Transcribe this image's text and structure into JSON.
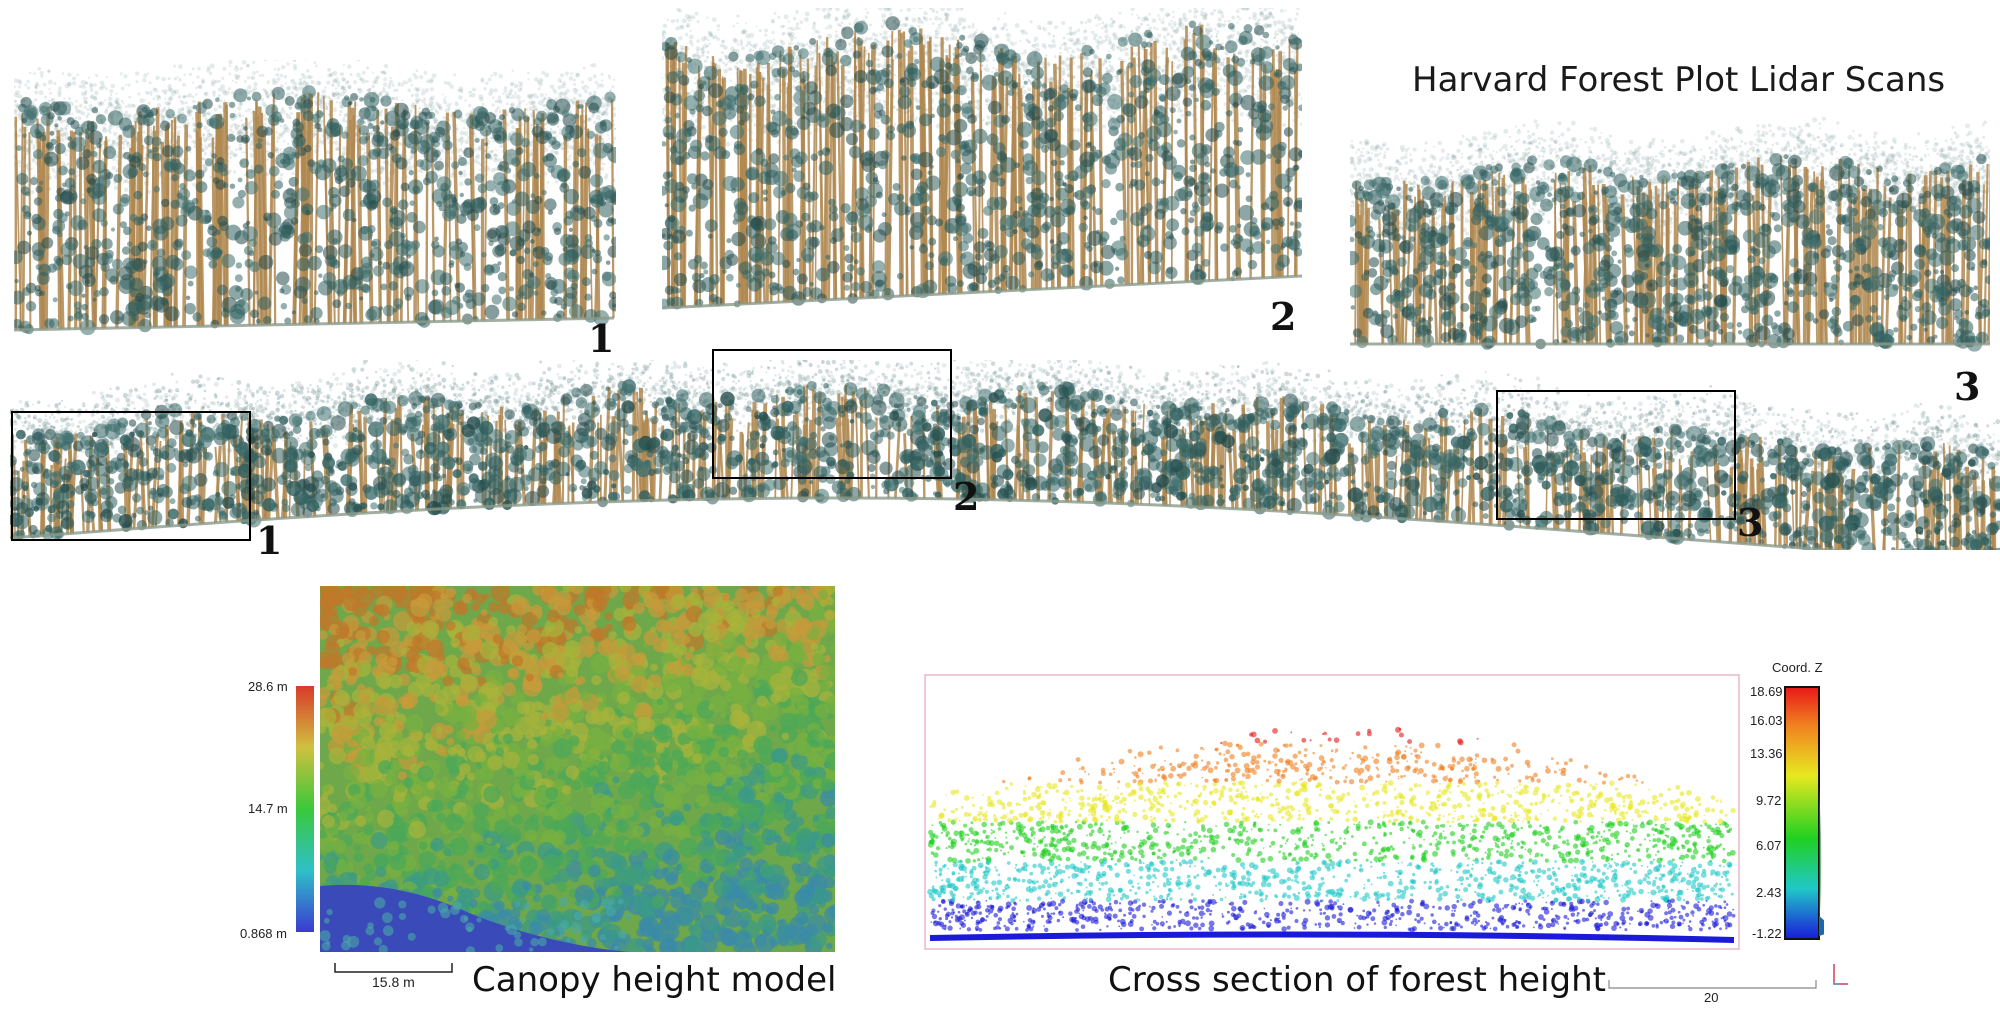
{
  "title": "Harvard Forest Plot Lidar Scans",
  "scan_labels": [
    "1",
    "2",
    "3"
  ],
  "panorama_box_labels": [
    "1",
    "2",
    "3"
  ],
  "chm": {
    "caption": "Canopy height model",
    "scale_bar_label": "15.8 m",
    "colorbar_ticks": [
      "28.6 m",
      "14.7 m",
      "0.868 m"
    ]
  },
  "cross_section": {
    "caption": "Cross section of forest height",
    "colorbar_title": "Coord. Z",
    "colorbar_ticks": [
      "18.69",
      "16.03",
      "13.36",
      "9.72",
      "6.07",
      "2.43",
      "-1.22"
    ],
    "scale_bar_label": "20"
  },
  "colors": {
    "foliage": "#2f5e5e",
    "trunk": "#b08850",
    "box_stroke": "#000000"
  }
}
